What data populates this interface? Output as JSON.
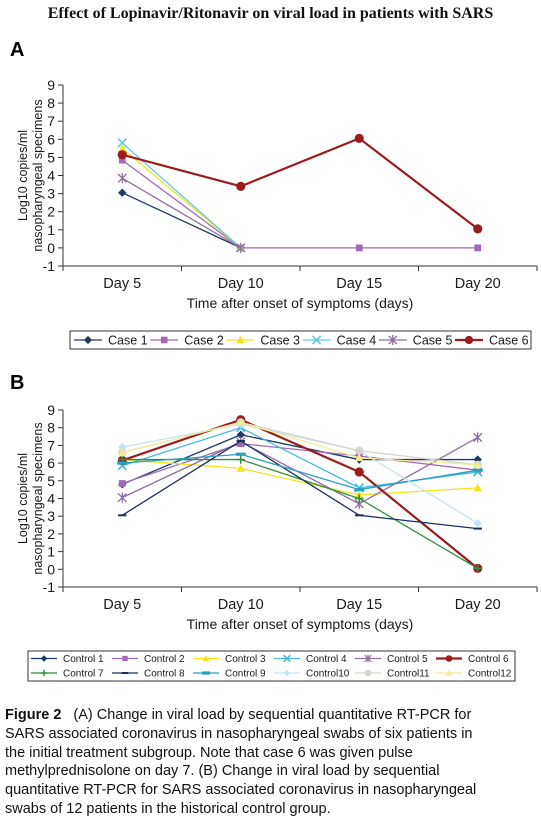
{
  "title": "Effect of Lopinavir/Ritonavir on viral load in patients with SARS",
  "chart_data": [
    {
      "panel_label": "A",
      "type": "line",
      "categories": [
        "Day 5",
        "Day 10",
        "Day 15",
        "Day 20"
      ],
      "xlabel": "Time after onset of symptoms (days)",
      "ylabel_lines": [
        "Log10 copies/ml",
        "nasopharyngeal specimens"
      ],
      "ylim": [
        -1,
        9
      ],
      "yticks": [
        9,
        8,
        7,
        6,
        5,
        4,
        3,
        2,
        1,
        0,
        -1
      ],
      "grid": false,
      "legend": "bottom",
      "series": [
        {
          "name": "Case 1",
          "color": "#1d3b63",
          "marker": "diamond",
          "values": [
            3.05,
            0,
            null,
            null
          ]
        },
        {
          "name": "Case 2",
          "color": "#a16ab5",
          "marker": "square",
          "values": [
            4.85,
            0,
            0,
            0
          ]
        },
        {
          "name": "Case 3",
          "color": "#f4e31c",
          "marker": "triangle",
          "values": [
            5.5,
            0,
            null,
            null
          ]
        },
        {
          "name": "Case 4",
          "color": "#66c9e4",
          "marker": "x",
          "values": [
            5.8,
            0,
            null,
            null
          ]
        },
        {
          "name": "Case 5",
          "color": "#8e6f9e",
          "marker": "asterisk",
          "values": [
            3.85,
            0,
            null,
            null
          ]
        },
        {
          "name": "Case 6",
          "color": "#9b1b1e",
          "marker": "circle",
          "values": [
            5.15,
            3.4,
            6.05,
            1.05
          ]
        }
      ]
    },
    {
      "panel_label": "B",
      "type": "line",
      "categories": [
        "Day 5",
        "Day 10",
        "Day 15",
        "Day 20"
      ],
      "xlabel": "Time after onset of symptoms (days)",
      "ylabel_lines": [
        "Log10 copies/ml",
        "nasopharyngeal specimens"
      ],
      "ylim": [
        -1,
        9
      ],
      "yticks": [
        9,
        8,
        7,
        6,
        5,
        4,
        3,
        2,
        1,
        0,
        -1
      ],
      "grid": false,
      "legend": "bottom",
      "series": [
        {
          "name": "Control 1",
          "color": "#1d3b63",
          "marker": "diamond",
          "values": [
            4.8,
            7.6,
            6.2,
            6.2
          ]
        },
        {
          "name": "Control 2",
          "color": "#a16ab5",
          "marker": "square",
          "values": [
            4.85,
            7.1,
            6.4,
            5.6
          ]
        },
        {
          "name": "Control 3",
          "color": "#f4e31c",
          "marker": "triangle",
          "values": [
            6.2,
            5.7,
            4.2,
            4.6
          ]
        },
        {
          "name": "Control 4",
          "color": "#49bcd9",
          "marker": "x",
          "values": [
            5.85,
            8.0,
            4.6,
            5.5
          ]
        },
        {
          "name": "Control 5",
          "color": "#8e6f9e",
          "marker": "asterisk",
          "values": [
            4.05,
            7.2,
            3.7,
            7.45
          ]
        },
        {
          "name": "Control 6",
          "color": "#9b1b1e",
          "marker": "circle",
          "values": [
            6.15,
            8.45,
            5.5,
            0.05
          ]
        },
        {
          "name": "Control 7",
          "color": "#2f8f3f",
          "marker": "plus",
          "values": [
            6.2,
            6.2,
            4.0,
            0.05
          ]
        },
        {
          "name": "Control 8",
          "color": "#1c2f5c",
          "marker": "dash",
          "values": [
            3.05,
            7.25,
            3.05,
            2.3
          ]
        },
        {
          "name": "Control 9",
          "color": "#2aa0c0",
          "marker": "bar",
          "values": [
            6.0,
            6.5,
            4.5,
            5.6
          ]
        },
        {
          "name": "Control10",
          "color": "#c4e4f3",
          "marker": "diamond",
          "values": [
            6.9,
            8.2,
            6.7,
            2.6
          ]
        },
        {
          "name": "Control11",
          "color": "#d6d6cc",
          "marker": "circle",
          "values": [
            6.6,
            8.3,
            6.7,
            5.9
          ]
        },
        {
          "name": "Control12",
          "color": "#f4ec98",
          "marker": "triangle",
          "values": [
            6.6,
            8.3,
            6.3,
            5.9
          ]
        }
      ]
    }
  ],
  "caption": {
    "label": "Figure 2",
    "lines": [
      "(A) Change in viral load by sequential quantitative RT-PCR for",
      "SARS associated coronavirus in nasopharyngeal swabs of six patients in",
      "the initial treatment subgroup. Note that case 6 was given pulse",
      "methylprednisolone on day 7. (B) Change in viral load by sequential",
      "quantitative RT-PCR for SARS associated coronavirus in nasopharyngeal",
      "swabs of 12 patients in the historical control group."
    ]
  }
}
